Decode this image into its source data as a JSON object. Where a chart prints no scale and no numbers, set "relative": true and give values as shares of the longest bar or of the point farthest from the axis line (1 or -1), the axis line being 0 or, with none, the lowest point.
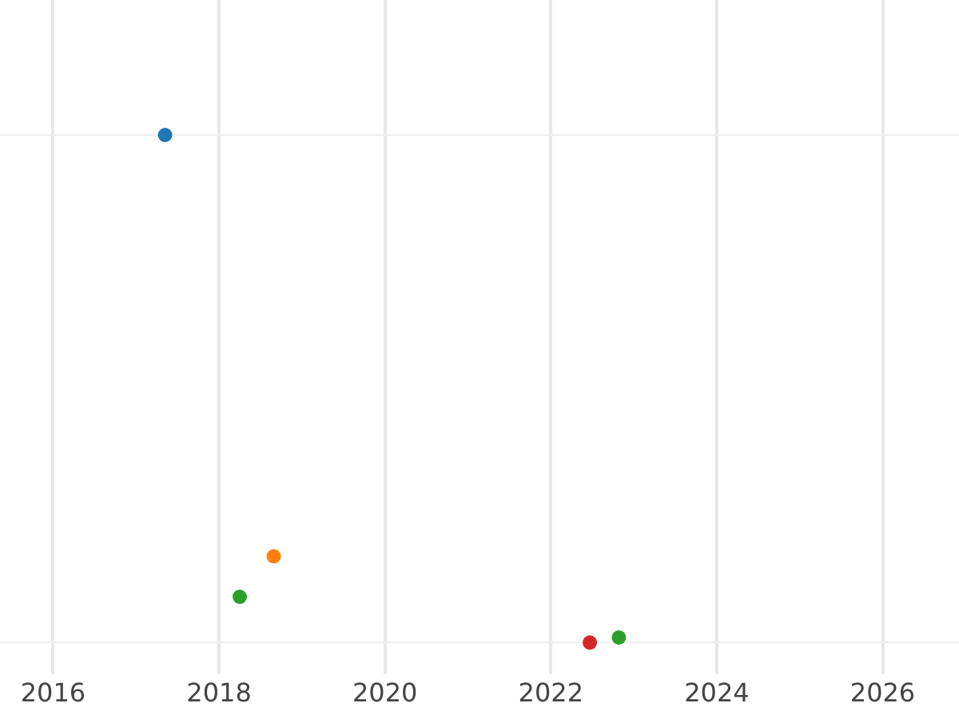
{
  "chart_data": {
    "type": "scatter",
    "relative": true,
    "xlim": [
      2015.36,
      2026.92
    ],
    "xticks": [
      2016,
      2018,
      2020,
      2022,
      2024,
      2026
    ],
    "series": [
      {
        "color": "#1f77b4",
        "x": [
          2017.35
        ],
        "values": [
          1
        ]
      },
      {
        "color": "#ff7f0e",
        "x": [
          2018.66
        ],
        "values": [
          0.17
        ]
      },
      {
        "color": "#2ca02c",
        "x": [
          2018.25,
          2022.82
        ],
        "values": [
          0.09,
          0.01
        ]
      },
      {
        "color": "#d62728",
        "x": [
          2022.47
        ],
        "values": [
          0
        ]
      }
    ],
    "marker": "circle",
    "grid": true,
    "tick_labels": "x"
  }
}
